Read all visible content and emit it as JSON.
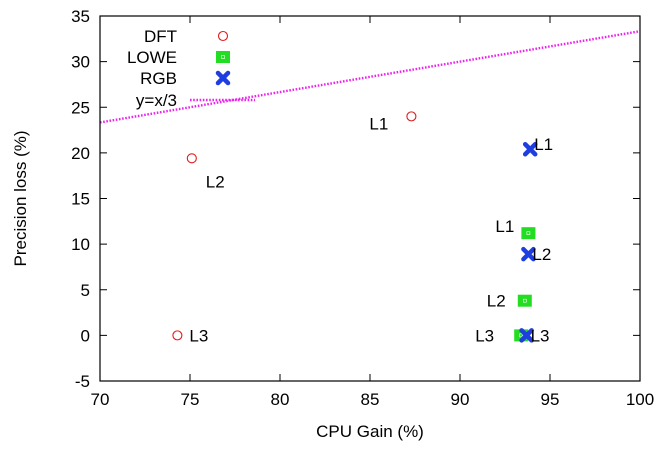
{
  "chart_data": {
    "type": "scatter",
    "title": "",
    "xlabel": "CPU Gain (%)",
    "ylabel": "Precision loss (%)",
    "xlim": [
      70,
      100
    ],
    "ylim": [
      -5,
      35
    ],
    "xticks": [
      70,
      75,
      80,
      85,
      90,
      95,
      100
    ],
    "yticks": [
      -5,
      0,
      5,
      10,
      15,
      20,
      25,
      30,
      35
    ],
    "grid": false,
    "legend_position": "top-left",
    "series": [
      {
        "name": "DFT",
        "marker": "open-circle",
        "color": "#e31a1c",
        "points": [
          {
            "x": 87.3,
            "y": 24.0,
            "label": "L1"
          },
          {
            "x": 75.1,
            "y": 19.4,
            "label": "L2"
          },
          {
            "x": 74.3,
            "y": 0.0,
            "label": "L3"
          }
        ]
      },
      {
        "name": "LOWE",
        "marker": "filled-square",
        "color": "#22dd22",
        "points": [
          {
            "x": 93.8,
            "y": 11.2,
            "label": "L1"
          },
          {
            "x": 93.6,
            "y": 3.8,
            "label": "L2"
          },
          {
            "x": 93.4,
            "y": 0.0,
            "label": "L3"
          }
        ]
      },
      {
        "name": "RGB",
        "marker": "filled-x",
        "color": "#1f3ee0",
        "points": [
          {
            "x": 93.9,
            "y": 20.4,
            "label": "L1"
          },
          {
            "x": 93.8,
            "y": 8.9,
            "label": "L2"
          },
          {
            "x": 93.7,
            "y": 0.0,
            "label": "L3"
          }
        ]
      },
      {
        "name": "y=x/3",
        "type": "line",
        "style": "dotted",
        "color": "#ee22ee",
        "x": [
          70,
          100
        ],
        "y": [
          23.333,
          33.333
        ]
      }
    ]
  }
}
